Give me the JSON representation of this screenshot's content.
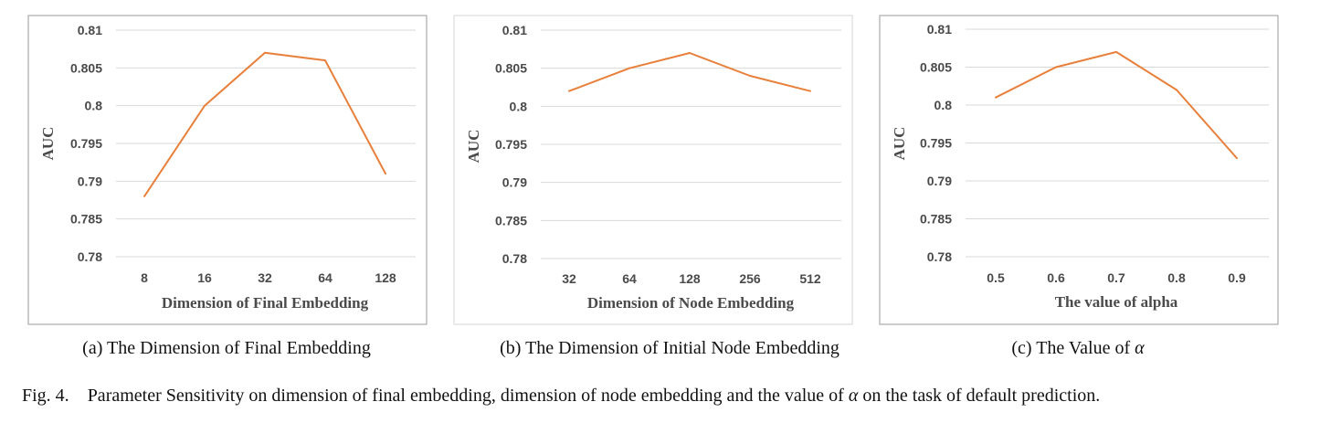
{
  "chart_data": [
    {
      "type": "line",
      "title": "",
      "xlabel": "Dimension of Final Embedding",
      "ylabel": "AUC",
      "categories": [
        "8",
        "16",
        "32",
        "64",
        "128"
      ],
      "series": [
        {
          "values": [
            0.788,
            0.8,
            0.807,
            0.806,
            0.791
          ]
        }
      ],
      "ylim": [
        0.78,
        0.81
      ],
      "yticks": [
        "0.81",
        "0.805",
        "0.8",
        "0.795",
        "0.79",
        "0.785",
        "0.78"
      ],
      "grid": true,
      "color": "#e8803c",
      "caption": "(a) The Dimension of Final Embedding"
    },
    {
      "type": "line",
      "title": "",
      "xlabel": "Dimension of Node Embedding",
      "ylabel": "AUC",
      "categories": [
        "32",
        "64",
        "128",
        "256",
        "512"
      ],
      "series": [
        {
          "values": [
            0.802,
            0.805,
            0.807,
            0.804,
            0.802
          ]
        }
      ],
      "ylim": [
        0.78,
        0.81
      ],
      "yticks": [
        "0.81",
        "0.805",
        "0.8",
        "0.795",
        "0.79",
        "0.785",
        "0.78"
      ],
      "grid": true,
      "color": "#e8803c",
      "caption": "(b) The Dimension of Initial Node Embedding"
    },
    {
      "type": "line",
      "title": "",
      "xlabel": "The value of alpha",
      "ylabel": "AUC",
      "categories": [
        "0.5",
        "0.6",
        "0.7",
        "0.8",
        "0.9"
      ],
      "series": [
        {
          "values": [
            0.801,
            0.805,
            0.807,
            0.802,
            0.793
          ]
        }
      ],
      "ylim": [
        0.78,
        0.81
      ],
      "yticks": [
        "0.81",
        "0.805",
        "0.8",
        "0.795",
        "0.79",
        "0.785",
        "0.78"
      ],
      "grid": true,
      "color": "#e8803c",
      "caption_prefix": "(c) The Value of ",
      "caption_symbol": "α"
    }
  ],
  "figure_caption": {
    "label": "Fig. 4.",
    "text_1": "Parameter Sensitivity on dimension of final embedding, dimension of node embedding and the value of ",
    "symbol": "α",
    "text_2": " on the task of default prediction."
  }
}
